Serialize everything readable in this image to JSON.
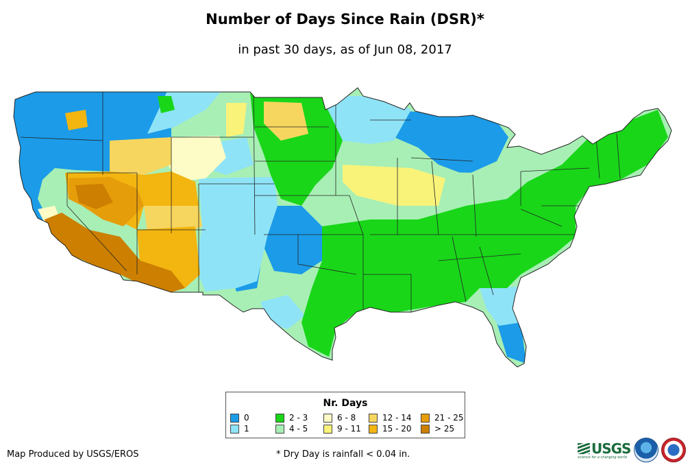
{
  "title": "Number of Days Since Rain (DSR)*",
  "subtitle": "in past 30 days, as of Jun 08, 2017",
  "legend": {
    "title": "Nr. Days",
    "items": [
      {
        "label": "0",
        "color": "#1b9be8"
      },
      {
        "label": "1",
        "color": "#8fe3f7"
      },
      {
        "label": "2 - 3",
        "color": "#19d619"
      },
      {
        "label": "4 - 5",
        "color": "#a8efb5"
      },
      {
        "label": "6 - 8",
        "color": "#fdfcc6"
      },
      {
        "label": "9 - 11",
        "color": "#f9f37a"
      },
      {
        "label": "12 - 14",
        "color": "#f6d65f"
      },
      {
        "label": "15 - 20",
        "color": "#f3b510"
      },
      {
        "label": "21 - 25",
        "color": "#e69d0a"
      },
      {
        "label": "> 25",
        "color": "#cc7f00"
      }
    ]
  },
  "credit": "Map Produced by USGS/EROS",
  "footnote": "* Dry Day is rainfall < 0.04 in.",
  "logos": {
    "usgs": "USGS",
    "usgs_tagline": "science for a changing world"
  }
}
